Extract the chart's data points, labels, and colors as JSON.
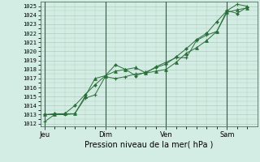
{
  "title": "Pression niveau de la mer( hPa )",
  "ylabel_values": [
    1012,
    1013,
    1014,
    1015,
    1016,
    1017,
    1018,
    1019,
    1020,
    1021,
    1022,
    1023,
    1024,
    1025
  ],
  "ylim": [
    1011.7,
    1025.5
  ],
  "bg_color": "#d4ede4",
  "plot_bg_color": "#d4ede4",
  "grid_color": "#b0ccbf",
  "line_color": "#2a6e3a",
  "xtick_labels": [
    "Jeu",
    "Dim",
    "Ven",
    "Sam"
  ],
  "xtick_positions": [
    0,
    3,
    6,
    9
  ],
  "xlim": [
    -0.2,
    10.5
  ],
  "line1_x": [
    0,
    0.5,
    1,
    1.5,
    2,
    2.5,
    3,
    3.5,
    4,
    4.5,
    5,
    5.5,
    6,
    6.5,
    7,
    7.5,
    8,
    8.5,
    9,
    9.5,
    10
  ],
  "line1_y": [
    1012.2,
    1013.0,
    1013.0,
    1013.1,
    1014.8,
    1015.2,
    1017.2,
    1017.0,
    1017.2,
    1017.5,
    1017.6,
    1018.3,
    1018.8,
    1019.3,
    1019.3,
    1021.2,
    1021.8,
    1022.2,
    1024.5,
    1025.2,
    1025.0
  ],
  "line2_x": [
    0,
    0.5,
    1,
    1.5,
    2,
    2.5,
    3,
    3.5,
    4,
    4.5,
    5,
    5.5,
    6,
    6.5,
    7,
    7.5,
    8,
    8.5,
    9,
    9.5,
    10
  ],
  "line2_y": [
    1013.0,
    1013.0,
    1013.1,
    1013.1,
    1015.0,
    1017.0,
    1017.3,
    1017.8,
    1018.0,
    1018.2,
    1017.6,
    1017.8,
    1018.0,
    1018.8,
    1019.8,
    1020.4,
    1021.2,
    1022.2,
    1024.3,
    1024.6,
    1024.8
  ],
  "line3_x": [
    0,
    0.5,
    1,
    1.5,
    2,
    2.5,
    3,
    3.5,
    4,
    4.5,
    5,
    5.5,
    6,
    6.5,
    7,
    7.5,
    8,
    8.5,
    9,
    9.5,
    10
  ],
  "line3_y": [
    1013.0,
    1013.1,
    1013.1,
    1014.0,
    1015.2,
    1016.3,
    1017.3,
    1018.5,
    1018.0,
    1017.3,
    1017.7,
    1018.2,
    1018.6,
    1019.4,
    1020.3,
    1021.3,
    1022.0,
    1023.3,
    1024.5,
    1024.2,
    1024.9
  ],
  "vline_positions": [
    0,
    3,
    6,
    9
  ],
  "vline_color": "#3a5a4a",
  "spine_color": "#3a5a4a"
}
